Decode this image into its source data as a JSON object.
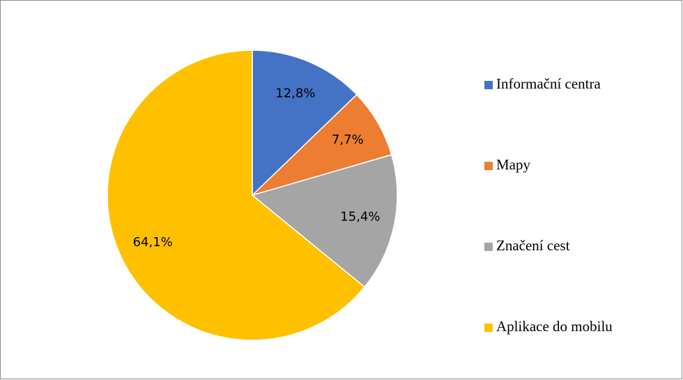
{
  "chart_data": {
    "type": "pie",
    "categories": [
      "Informační centra",
      "Mapy",
      "Značení cest",
      "Aplikace do mobilu"
    ],
    "values": [
      12.8,
      7.7,
      15.4,
      64.1
    ],
    "value_labels": [
      "12,8%",
      "7,7%",
      "15,4%",
      "64,1%"
    ],
    "colors": [
      "#4472c4",
      "#ed7d31",
      "#a5a5a5",
      "#ffc000"
    ],
    "legend": "right"
  }
}
